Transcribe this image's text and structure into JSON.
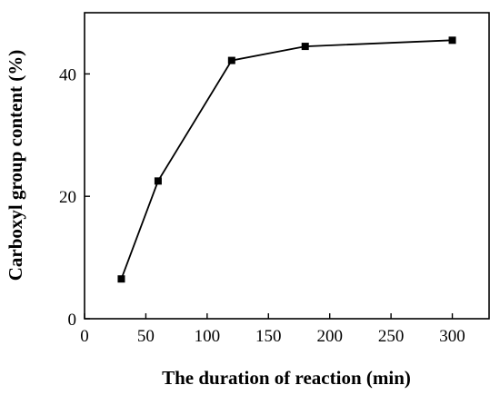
{
  "chart_data": {
    "type": "line",
    "title": "",
    "xlabel": "The duration of reaction (min)",
    "ylabel": "Carboxyl group content (%)",
    "xlim": [
      0,
      330
    ],
    "ylim": [
      0,
      50
    ],
    "x_ticks": [
      0,
      50,
      100,
      150,
      200,
      250,
      300
    ],
    "y_ticks": [
      0,
      20,
      40
    ],
    "grid": false,
    "legend": "none",
    "marker": "square",
    "color": "#000000",
    "series": [
      {
        "x": [
          30,
          60,
          120,
          180,
          300
        ],
        "values": [
          6.5,
          22.5,
          42.2,
          44.5,
          45.5
        ]
      }
    ]
  }
}
